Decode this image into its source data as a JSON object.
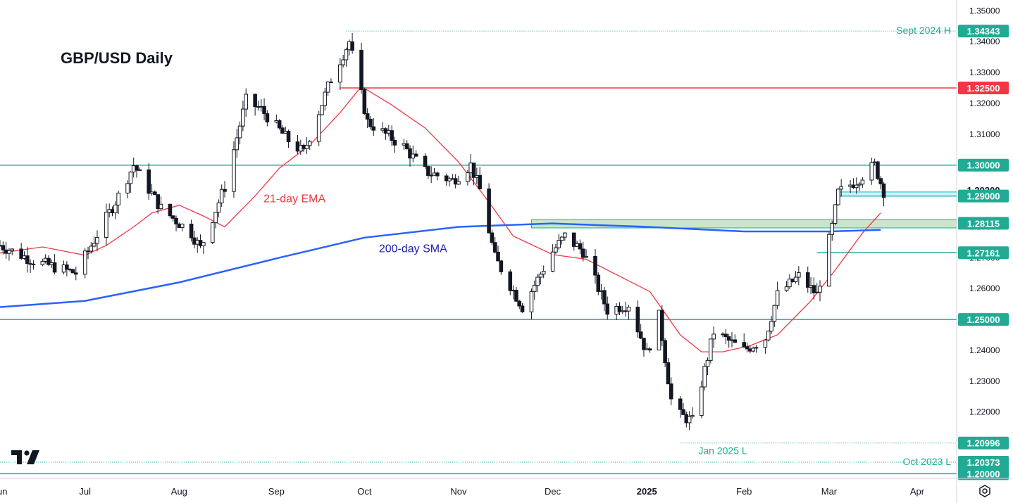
{
  "chart_data": {
    "type": "candlestick",
    "title": "GBP/USD Daily",
    "xlabel": "",
    "ylabel": "",
    "ylim": [
      1.1985,
      1.3535
    ],
    "y_ticks": [
      "1.35000",
      "1.34000",
      "1.33000",
      "1.32000",
      "1.31000",
      "1.30000",
      "1.29000",
      "1.28000",
      "1.27000",
      "1.26000",
      "1.25000",
      "1.24000",
      "1.23000",
      "1.22000",
      "1.21000",
      "1.20000"
    ],
    "x_ticks": [
      "Jun",
      "Jul",
      "Aug",
      "Sep",
      "Oct",
      "Nov",
      "Dec",
      "2025",
      "Feb",
      "Mar",
      "Apr"
    ],
    "x_range": [
      "2024-06-03",
      "2025-04-14"
    ],
    "series": [
      {
        "name": "21-day EMA",
        "color": "#f23645",
        "values": [
          [
            "2024-06-03",
            1.2715
          ],
          [
            "2024-06-17",
            1.2735
          ],
          [
            "2024-07-01",
            1.2708
          ],
          [
            "2024-07-08",
            1.274
          ],
          [
            "2024-07-17",
            1.28
          ],
          [
            "2024-07-23",
            1.2845
          ],
          [
            "2024-08-01",
            1.287
          ],
          [
            "2024-08-09",
            1.2835
          ],
          [
            "2024-08-16",
            1.28
          ],
          [
            "2024-08-26",
            1.29
          ],
          [
            "2024-09-03",
            1.299
          ],
          [
            "2024-09-13",
            1.3065
          ],
          [
            "2024-09-23",
            1.317
          ],
          [
            "2024-09-30",
            1.3255
          ],
          [
            "2024-10-10",
            1.3195
          ],
          [
            "2024-10-21",
            1.312
          ],
          [
            "2024-11-01",
            1.301
          ],
          [
            "2024-11-11",
            1.288
          ],
          [
            "2024-11-19",
            1.277
          ],
          [
            "2024-12-02",
            1.271
          ],
          [
            "2024-12-13",
            1.2695
          ],
          [
            "2024-12-24",
            1.264
          ],
          [
            "2025-01-03",
            1.259
          ],
          [
            "2025-01-13",
            1.245
          ],
          [
            "2025-01-20",
            1.2395
          ],
          [
            "2025-01-27",
            1.2395
          ],
          [
            "2025-02-05",
            1.2415
          ],
          [
            "2025-02-14",
            1.245
          ],
          [
            "2025-02-25",
            1.256
          ],
          [
            "2025-03-05",
            1.266
          ],
          [
            "2025-03-14",
            1.278
          ],
          [
            "2025-03-20",
            1.2845
          ]
        ]
      },
      {
        "name": "200-day SMA",
        "color": "#2962ff",
        "values": [
          [
            "2024-06-03",
            1.254
          ],
          [
            "2024-07-01",
            1.256
          ],
          [
            "2024-08-01",
            1.262
          ],
          [
            "2024-09-03",
            1.27
          ],
          [
            "2024-10-01",
            1.2765
          ],
          [
            "2024-11-01",
            1.28
          ],
          [
            "2024-12-02",
            1.2811
          ],
          [
            "2025-01-02",
            1.28
          ],
          [
            "2025-02-03",
            1.2785
          ],
          [
            "2025-03-03",
            1.2785
          ],
          [
            "2025-03-20",
            1.279
          ]
        ]
      }
    ],
    "levels": [
      {
        "value": "1.34343",
        "label": "Sept 2024 H",
        "color": "#22ab94",
        "style": "dotted"
      },
      {
        "value": "1.32500",
        "label": "",
        "color": "#f23645",
        "style": "solid"
      },
      {
        "value": "1.30000",
        "label": "",
        "color": "#22ab94",
        "style": "solid"
      },
      {
        "value": "1.29200",
        "label": "",
        "color": "#131722",
        "style": "none"
      },
      {
        "value": "1.29000",
        "label": "",
        "color": "#22ab94",
        "style": "solid"
      },
      {
        "value": "1.28115",
        "label": "",
        "color": "#22ab94",
        "style": "zone"
      },
      {
        "value": "1.27161",
        "label": "",
        "color": "#22ab94",
        "style": "solid"
      },
      {
        "value": "1.25000",
        "label": "",
        "color": "#22ab94",
        "style": "solid"
      },
      {
        "value": "1.20996",
        "label": "Jan 2025 L",
        "color": "#22ab94",
        "style": "dotted"
      },
      {
        "value": "1.20373",
        "label": "Oct 2023 L",
        "color": "#22ab94",
        "style": "dotted"
      },
      {
        "value": "1.20000",
        "label": "",
        "color": "#22ab94",
        "style": "solid"
      }
    ],
    "annotations": [
      {
        "text": "21-day EMA",
        "color": "#f23645"
      },
      {
        "text": "200-day SMA",
        "color": "#1e22aa"
      }
    ],
    "candle_path_checkpoints": [
      [
        "2024-06-03",
        1.274
      ],
      [
        "2024-06-14",
        1.269
      ],
      [
        "2024-06-28",
        1.265
      ],
      [
        "2024-07-12",
        1.29
      ],
      [
        "2024-07-17",
        1.3
      ],
      [
        "2024-07-26",
        1.286
      ],
      [
        "2024-08-05",
        1.278
      ],
      [
        "2024-08-08",
        1.273
      ],
      [
        "2024-08-16",
        1.293
      ],
      [
        "2024-08-23",
        1.321
      ],
      [
        "2024-08-28",
        1.318
      ],
      [
        "2024-09-06",
        1.308
      ],
      [
        "2024-09-11",
        1.304
      ],
      [
        "2024-09-20",
        1.328
      ],
      [
        "2024-09-26",
        1.34
      ],
      [
        "2024-10-02",
        1.314
      ],
      [
        "2024-10-14",
        1.306
      ],
      [
        "2024-10-21",
        1.298
      ],
      [
        "2024-10-30",
        1.295
      ],
      [
        "2024-11-05",
        1.3
      ],
      [
        "2024-11-08",
        1.292
      ],
      [
        "2024-11-13",
        1.27
      ],
      [
        "2024-11-22",
        1.254
      ],
      [
        "2024-12-02",
        1.272
      ],
      [
        "2024-12-06",
        1.277
      ],
      [
        "2024-12-12",
        1.272
      ],
      [
        "2024-12-20",
        1.253
      ],
      [
        "2024-12-27",
        1.255
      ],
      [
        "2025-01-02",
        1.239
      ],
      [
        "2025-01-06",
        1.251
      ],
      [
        "2025-01-10",
        1.224
      ],
      [
        "2025-01-13",
        1.219
      ],
      [
        "2025-01-17",
        1.217
      ],
      [
        "2025-01-24",
        1.246
      ],
      [
        "2025-02-03",
        1.24
      ],
      [
        "2025-02-10",
        1.244
      ],
      [
        "2025-02-14",
        1.258
      ],
      [
        "2025-02-21",
        1.264
      ],
      [
        "2025-02-27",
        1.258
      ],
      [
        "2025-03-04",
        1.28
      ],
      [
        "2025-03-06",
        1.291
      ],
      [
        "2025-03-12",
        1.295
      ],
      [
        "2025-03-18",
        1.3
      ],
      [
        "2025-03-21",
        1.2915
      ]
    ],
    "colors": {
      "up": "#ffffff",
      "down": "#131722",
      "wick": "#131722",
      "axis_text": "#131722"
    }
  }
}
